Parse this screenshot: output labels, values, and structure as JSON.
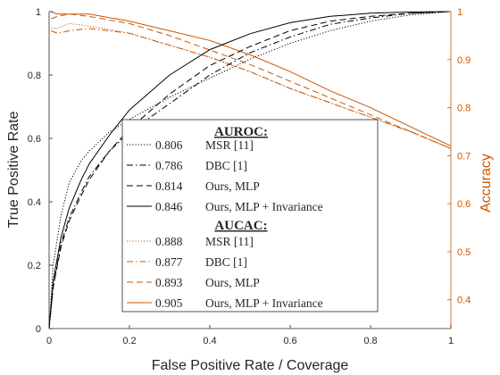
{
  "chart_data": {
    "type": "line",
    "xlabel": "False Positive Rate / Coverage",
    "ylabel_left": "True Positive Rate",
    "ylabel_right": "Accuracy",
    "xlim": [
      0,
      1
    ],
    "ylim_left": [
      0,
      1
    ],
    "ylim_right": [
      0.34,
      1
    ],
    "x_ticks": [
      "0",
      "0.2",
      "0.4",
      "0.6",
      "0.8",
      "1"
    ],
    "y_left_ticks": [
      "0",
      "0.2",
      "0.4",
      "0.6",
      "0.8",
      "1"
    ],
    "y_right_ticks": [
      "0.4",
      "0.5",
      "0.6",
      "0.7",
      "0.8",
      "0.9",
      "1"
    ],
    "grid": false,
    "legend_position": "center-left",
    "colors": {
      "roc": "#000000",
      "accuracy": "#cc5500",
      "axis_left": "#262626",
      "axis_right": "#cc5500"
    },
    "legend": {
      "roc_heading": "AUROC:",
      "cac_heading": "AUCAC:",
      "roc_entries": [
        {
          "value": "0.806",
          "name": "MSR [11]",
          "style": "dotted"
        },
        {
          "value": "0.786",
          "name": "DBC [1]",
          "style": "dashdot"
        },
        {
          "value": "0.814",
          "name": "Ours, MLP",
          "style": "dashed"
        },
        {
          "value": "0.846",
          "name": "Ours, MLP + Invariance",
          "style": "solid"
        }
      ],
      "cac_entries": [
        {
          "value": "0.888",
          "name": "MSR [11]",
          "style": "dotted"
        },
        {
          "value": "0.877",
          "name": "DBC [1]",
          "style": "dashdot"
        },
        {
          "value": "0.893",
          "name": "Ours, MLP",
          "style": "dashed"
        },
        {
          "value": "0.905",
          "name": "Ours, MLP + Invariance",
          "style": "solid"
        }
      ]
    },
    "roc_series": [
      {
        "style": "dotted",
        "x": [
          0,
          0.01,
          0.03,
          0.05,
          0.08,
          0.1,
          0.15,
          0.2,
          0.3,
          0.4,
          0.5,
          0.6,
          0.7,
          0.8,
          0.9,
          1.0
        ],
        "y": [
          0,
          0.2,
          0.36,
          0.46,
          0.53,
          0.56,
          0.62,
          0.66,
          0.73,
          0.79,
          0.85,
          0.9,
          0.94,
          0.97,
          0.99,
          1.0
        ]
      },
      {
        "style": "dashdot",
        "x": [
          0,
          0.01,
          0.03,
          0.05,
          0.08,
          0.1,
          0.15,
          0.2,
          0.3,
          0.4,
          0.5,
          0.6,
          0.7,
          0.8,
          0.9,
          1.0
        ],
        "y": [
          0,
          0.13,
          0.27,
          0.35,
          0.43,
          0.48,
          0.56,
          0.62,
          0.71,
          0.8,
          0.87,
          0.92,
          0.96,
          0.98,
          0.995,
          1.0
        ]
      },
      {
        "style": "dashed",
        "x": [
          0,
          0.01,
          0.03,
          0.05,
          0.08,
          0.1,
          0.15,
          0.2,
          0.3,
          0.4,
          0.5,
          0.6,
          0.7,
          0.8,
          0.9,
          1.0
        ],
        "y": [
          0,
          0.13,
          0.26,
          0.34,
          0.42,
          0.47,
          0.56,
          0.63,
          0.74,
          0.83,
          0.89,
          0.94,
          0.97,
          0.985,
          0.995,
          1.0
        ]
      },
      {
        "style": "solid",
        "x": [
          0,
          0.01,
          0.03,
          0.05,
          0.08,
          0.1,
          0.15,
          0.2,
          0.3,
          0.4,
          0.5,
          0.6,
          0.7,
          0.8,
          0.9,
          1.0
        ],
        "y": [
          0,
          0.15,
          0.29,
          0.38,
          0.47,
          0.52,
          0.61,
          0.69,
          0.8,
          0.88,
          0.93,
          0.965,
          0.985,
          0.995,
          0.999,
          1.0
        ]
      }
    ],
    "accuracy_series": [
      {
        "style": "dotted",
        "x": [
          0.005,
          0.02,
          0.05,
          0.1,
          0.2,
          0.3,
          0.4,
          0.5,
          0.6,
          0.7,
          0.8,
          0.9,
          1.0
        ],
        "y": [
          0.965,
          0.965,
          0.975,
          0.97,
          0.955,
          0.93,
          0.905,
          0.875,
          0.84,
          0.81,
          0.78,
          0.75,
          0.715
        ]
      },
      {
        "style": "dashdot",
        "x": [
          0.005,
          0.02,
          0.05,
          0.1,
          0.2,
          0.3,
          0.4,
          0.5,
          0.6,
          0.7,
          0.8,
          0.9,
          1.0
        ],
        "y": [
          0.96,
          0.955,
          0.96,
          0.965,
          0.955,
          0.93,
          0.905,
          0.875,
          0.84,
          0.81,
          0.78,
          0.75,
          0.715
        ]
      },
      {
        "style": "dashed",
        "x": [
          0.005,
          0.02,
          0.05,
          0.1,
          0.2,
          0.3,
          0.4,
          0.5,
          0.6,
          0.7,
          0.8,
          0.9,
          1.0
        ],
        "y": [
          0.985,
          0.99,
          0.995,
          0.99,
          0.975,
          0.95,
          0.92,
          0.89,
          0.855,
          0.82,
          0.785,
          0.75,
          0.715
        ]
      },
      {
        "style": "solid",
        "x": [
          0.005,
          0.02,
          0.05,
          0.1,
          0.2,
          0.3,
          0.4,
          0.5,
          0.6,
          0.7,
          0.8,
          0.9,
          1.0
        ],
        "y": [
          1.0,
          0.995,
          0.995,
          0.995,
          0.98,
          0.96,
          0.94,
          0.91,
          0.875,
          0.835,
          0.8,
          0.76,
          0.72
        ]
      }
    ]
  }
}
